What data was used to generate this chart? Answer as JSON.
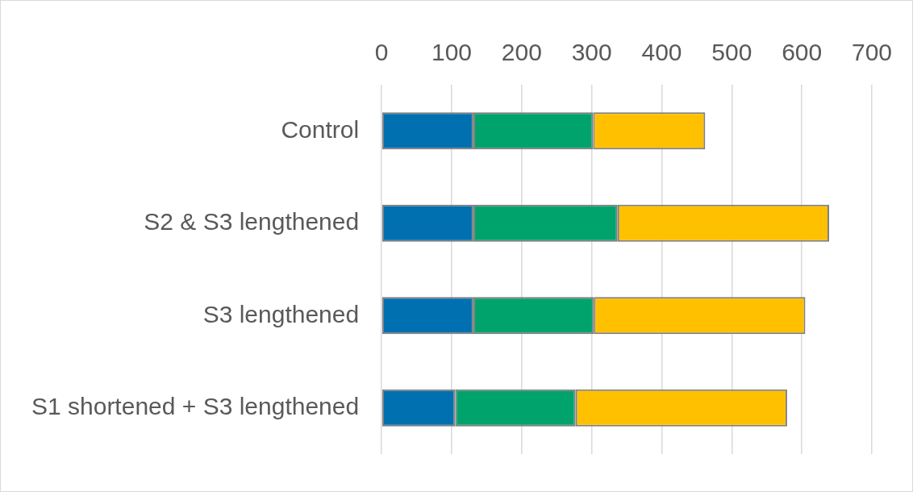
{
  "chart_data": {
    "type": "bar",
    "orientation": "horizontal",
    "stacked": true,
    "categories": [
      "Control",
      "S2 & S3 lengthened",
      "S3 lengthened",
      "S1 shortened + S3 lengthened"
    ],
    "series": [
      {
        "color": "#0070b0",
        "values": [
          131,
          131,
          131,
          105
        ]
      },
      {
        "color": "#00a36c",
        "values": [
          171,
          206,
          172,
          172
        ]
      },
      {
        "color": "#ffc000",
        "values": [
          160,
          302,
          302,
          302
        ]
      }
    ],
    "xlim": [
      0,
      700
    ],
    "xticks": [
      0,
      100,
      200,
      300,
      400,
      500,
      600,
      700
    ],
    "grid": "x",
    "legend": false
  }
}
